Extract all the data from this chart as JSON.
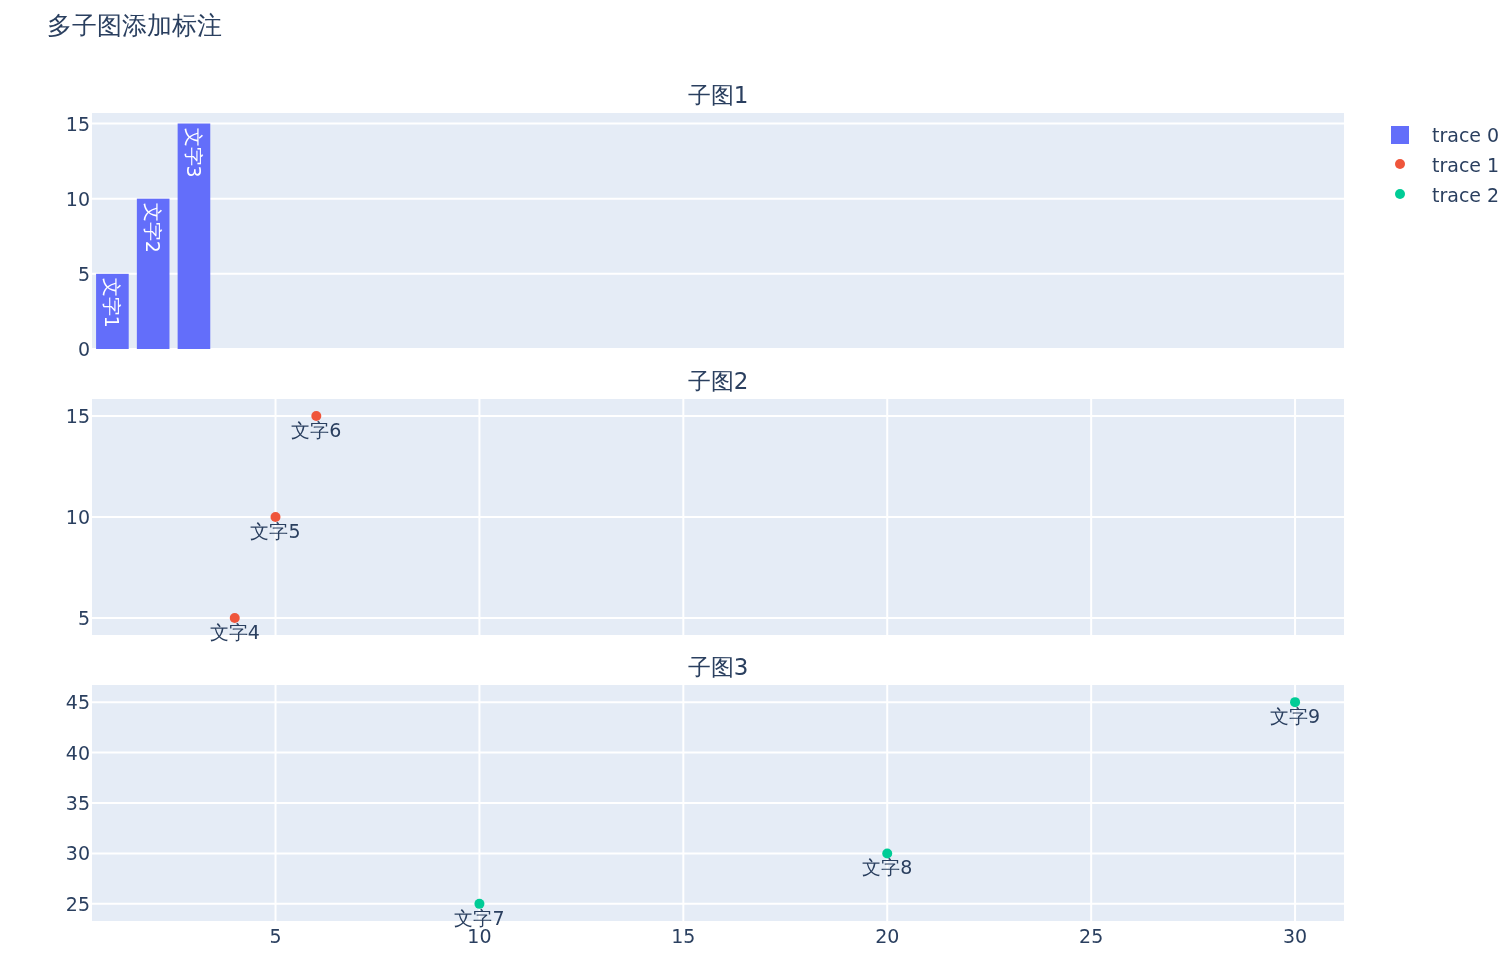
{
  "chart_data": [
    {
      "type": "bar",
      "title": "多子图添加标注",
      "subtitle": "子图1",
      "x": [
        1,
        2,
        3
      ],
      "xlim": [
        0.5,
        31.2
      ],
      "ylim": [
        0,
        15.7
      ],
      "yticks": [
        0,
        5,
        10,
        15
      ],
      "tick_labels": "y",
      "grid": "y",
      "legend": "top right",
      "series": [
        {
          "name": "trace 0",
          "color": "#636efa",
          "values": [
            5,
            10,
            15
          ],
          "value_labels": [
            "文字1",
            "文字2",
            "文字3"
          ]
        }
      ]
    },
    {
      "type": "scatter",
      "title": "子图2",
      "x": [
        4,
        5,
        6
      ],
      "xlim": [
        0.5,
        31.2
      ],
      "xticks": [
        5,
        10,
        15,
        20,
        25,
        30
      ],
      "ylim": [
        4.16,
        15.84
      ],
      "yticks": [
        5,
        10,
        15
      ],
      "tick_labels": "y",
      "grid": true,
      "legend": "top right",
      "marker": "circle",
      "series": [
        {
          "name": "trace 1",
          "color": "#ef553b",
          "values": [
            5,
            10,
            15
          ],
          "value_labels": [
            "文字4",
            "文字5",
            "文字6"
          ]
        }
      ]
    },
    {
      "type": "scatter",
      "title": "子图3",
      "x": [
        10,
        20,
        30
      ],
      "xlim": [
        0.5,
        31.2
      ],
      "xticks": [
        5,
        10,
        15,
        20,
        25,
        30
      ],
      "ylim": [
        23.3,
        46.7
      ],
      "yticks": [
        25,
        30,
        35,
        40,
        45
      ],
      "grid": true,
      "legend": "top right",
      "marker": "circle",
      "series": [
        {
          "name": "trace 2",
          "color": "#00cc96",
          "values": [
            25,
            30,
            45
          ],
          "value_labels": [
            "文字7",
            "文字8",
            "文字9"
          ]
        }
      ]
    }
  ]
}
